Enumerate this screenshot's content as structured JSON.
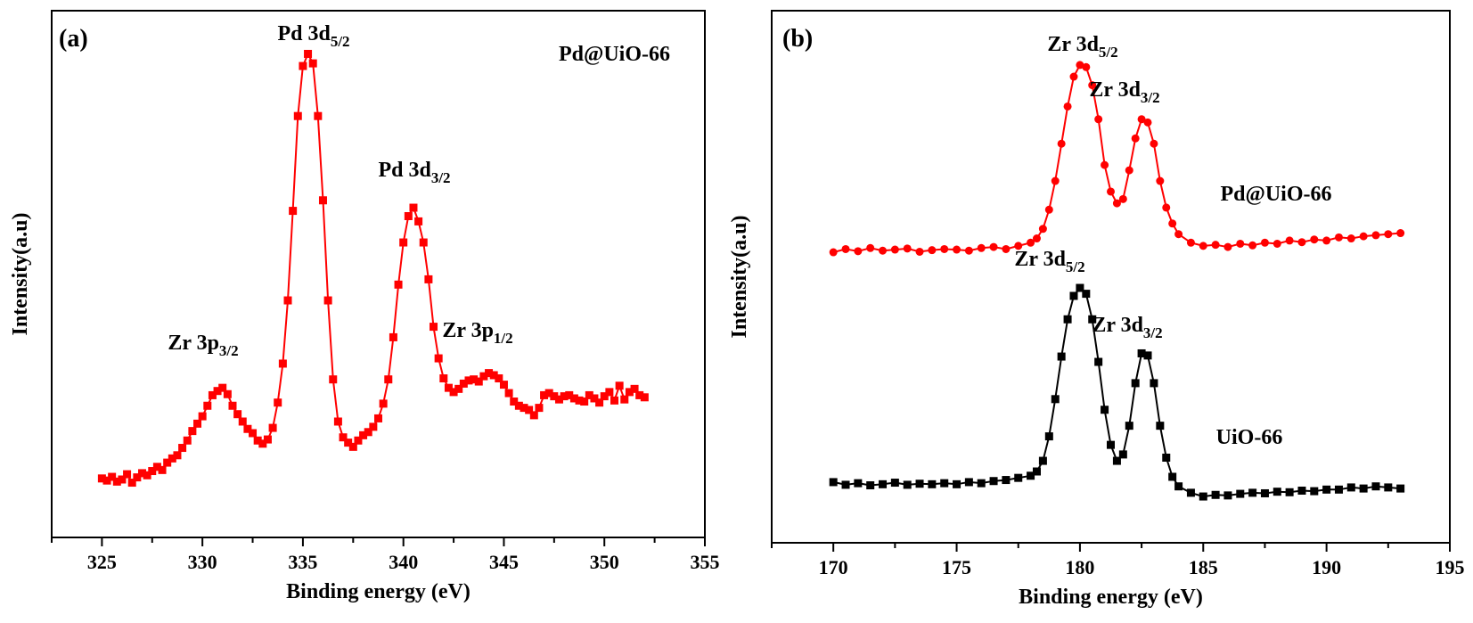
{
  "chart_data": [
    {
      "type": "scatter",
      "panel_label": "(a)",
      "title": "",
      "xlabel": "Binding energy (eV)",
      "ylabel": "Intensity(a.u)",
      "xlim": [
        322.5,
        355
      ],
      "ylim": [
        0,
        100
      ],
      "xticks": [
        325,
        330,
        335,
        340,
        345,
        350,
        355
      ],
      "minor_xticks": [
        322.5,
        327.5,
        332.5,
        337.5,
        342.5,
        347.5,
        352.5
      ],
      "grid": false,
      "sample_label": "Pd@UiO-66",
      "annotations": [
        {
          "text": "Pd 3d",
          "sub": "5/2",
          "x": 335.3,
          "y": 95
        },
        {
          "text": "Pd 3d",
          "sub": "3/2",
          "x": 340.5,
          "y": 67
        },
        {
          "text": "Zr 3p",
          "sub": "3/2",
          "x": 330.8,
          "y": 32
        },
        {
          "text": "Zr 3p",
          "sub": "1/2",
          "x": 344.6,
          "y": 35
        }
      ],
      "series": [
        {
          "name": "Pd@UiO-66",
          "color": "#ff0000",
          "marker": "square",
          "x": [
            325.0,
            325.25,
            325.5,
            325.75,
            326.0,
            326.25,
            326.5,
            326.75,
            327.0,
            327.25,
            327.5,
            327.75,
            328.0,
            328.25,
            328.5,
            328.75,
            329.0,
            329.25,
            329.5,
            329.75,
            330.0,
            330.25,
            330.5,
            330.75,
            331.0,
            331.25,
            331.5,
            331.75,
            332.0,
            332.25,
            332.5,
            332.75,
            333.0,
            333.25,
            333.5,
            333.75,
            334.0,
            334.25,
            334.5,
            334.75,
            335.0,
            335.25,
            335.5,
            335.75,
            336.0,
            336.25,
            336.5,
            336.75,
            337.0,
            337.25,
            337.5,
            337.75,
            338.0,
            338.25,
            338.5,
            338.75,
            339.0,
            339.25,
            339.5,
            339.75,
            340.0,
            340.25,
            340.5,
            340.75,
            341.0,
            341.25,
            341.5,
            341.75,
            342.0,
            342.25,
            342.5,
            342.75,
            343.0,
            343.25,
            343.5,
            343.75,
            344.0,
            344.25,
            344.5,
            344.75,
            345.0,
            345.25,
            345.5,
            345.75,
            346.0,
            346.25,
            346.5,
            346.75,
            347.0,
            347.25,
            347.5,
            347.75,
            348.0,
            348.25,
            348.5,
            348.75,
            349.0,
            349.25,
            349.5,
            349.75,
            350.0,
            350.25,
            350.5,
            350.75,
            351.0,
            351.25,
            351.5,
            351.75,
            352.0
          ],
          "y": [
            11.2,
            10.8,
            11.5,
            10.6,
            11.0,
            12.0,
            10.4,
            11.4,
            12.2,
            11.8,
            12.6,
            13.4,
            12.8,
            14.2,
            15.0,
            15.6,
            17.0,
            18.4,
            20.2,
            21.6,
            23.0,
            25.0,
            27.0,
            27.8,
            28.4,
            27.2,
            25.0,
            23.4,
            22.0,
            20.6,
            19.8,
            18.4,
            17.8,
            18.6,
            20.8,
            25.6,
            33.0,
            45.0,
            62.0,
            80.0,
            89.5,
            91.8,
            90.0,
            80.0,
            64.0,
            45.0,
            30.0,
            22.0,
            19.0,
            18.0,
            17.2,
            18.4,
            19.4,
            20.0,
            21.0,
            22.6,
            25.4,
            30.0,
            38.0,
            48.0,
            56.0,
            61.0,
            62.6,
            60.0,
            56.0,
            49.0,
            40.0,
            34.0,
            30.2,
            28.4,
            27.6,
            28.2,
            29.2,
            29.8,
            30.0,
            29.6,
            30.6,
            31.2,
            30.8,
            30.2,
            29.0,
            27.4,
            25.8,
            25.0,
            24.6,
            24.2,
            23.2,
            24.6,
            27.0,
            27.4,
            26.8,
            26.2,
            26.8,
            27.0,
            26.4,
            26.0,
            25.8,
            27.0,
            26.4,
            25.6,
            26.8,
            27.6,
            26.0,
            28.8,
            26.2,
            27.6,
            28.2,
            27.0,
            26.6
          ]
        }
      ]
    },
    {
      "type": "scatter",
      "panel_label": "(b)",
      "title": "",
      "xlabel": "Binding energy (eV)",
      "ylabel": "Intensity(a.u)",
      "xlim": [
        167.5,
        195
      ],
      "ylim": [
        0,
        100
      ],
      "xticks": [
        170,
        175,
        180,
        185,
        190,
        195
      ],
      "minor_xticks": [
        167.5,
        172.5,
        177.5,
        182.5,
        187.5,
        192.5
      ],
      "grid": false,
      "annotations": [
        {
          "text": "Zr 3d",
          "sub": "5/2",
          "x": 180.0,
          "y": 94
        },
        {
          "text": "Zr 3d",
          "sub": "3/2",
          "x": 183.2,
          "y": 84
        },
        {
          "text": "Pd@UiO-66",
          "sub": "",
          "x": 190.6,
          "y": 63
        },
        {
          "text": "Zr 3d",
          "sub": "5/2",
          "x": 180.0,
          "y": 51
        },
        {
          "text": "Zr 3d",
          "sub": "3/2",
          "x": 183.2,
          "y": 40
        },
        {
          "text": "UiO-66",
          "sub": "",
          "x": 191.4,
          "y": 17
        }
      ],
      "series": [
        {
          "name": "Pd@UiO-66",
          "color": "#ff0000",
          "marker": "circle",
          "x": [
            170.0,
            170.5,
            171.0,
            171.5,
            172.0,
            172.5,
            173.0,
            173.5,
            174.0,
            174.5,
            175.0,
            175.5,
            176.0,
            176.5,
            177.0,
            177.5,
            178.0,
            178.25,
            178.5,
            178.75,
            179.0,
            179.25,
            179.5,
            179.75,
            180.0,
            180.25,
            180.5,
            180.75,
            181.0,
            181.25,
            181.5,
            181.75,
            182.0,
            182.25,
            182.5,
            182.75,
            183.0,
            183.25,
            183.5,
            183.75,
            184.0,
            184.5,
            185.0,
            185.5,
            186.0,
            186.5,
            187.0,
            187.5,
            188.0,
            188.5,
            189.0,
            189.5,
            190.0,
            190.5,
            191.0,
            191.5,
            192.0,
            192.5,
            193.0
          ],
          "y": [
            54.6,
            55.2,
            54.8,
            55.4,
            54.9,
            55.1,
            55.3,
            54.7,
            55.0,
            55.2,
            55.1,
            54.9,
            55.4,
            55.6,
            55.2,
            55.8,
            56.4,
            57.2,
            59.0,
            62.6,
            68.0,
            75.0,
            82.0,
            87.6,
            89.8,
            89.4,
            86.0,
            79.6,
            71.0,
            66.0,
            63.8,
            64.6,
            70.0,
            76.0,
            79.6,
            79.0,
            75.0,
            68.0,
            63.0,
            60.0,
            58.0,
            56.4,
            55.8,
            56.0,
            55.6,
            56.2,
            55.9,
            56.4,
            56.2,
            56.8,
            56.5,
            57.0,
            56.8,
            57.4,
            57.2,
            57.6,
            57.8,
            58.0,
            58.2
          ]
        },
        {
          "name": "UiO-66",
          "color": "#000000",
          "marker": "square",
          "x": [
            170.0,
            170.5,
            171.0,
            171.5,
            172.0,
            172.5,
            173.0,
            173.5,
            174.0,
            174.5,
            175.0,
            175.5,
            176.0,
            176.5,
            177.0,
            177.5,
            178.0,
            178.25,
            178.5,
            178.75,
            179.0,
            179.25,
            179.5,
            179.75,
            180.0,
            180.25,
            180.5,
            180.75,
            181.0,
            181.25,
            181.5,
            181.75,
            182.0,
            182.25,
            182.5,
            182.75,
            183.0,
            183.25,
            183.5,
            183.75,
            184.0,
            184.5,
            185.0,
            185.5,
            186.0,
            186.5,
            187.0,
            187.5,
            188.0,
            188.5,
            189.0,
            189.5,
            190.0,
            190.5,
            191.0,
            191.5,
            192.0,
            192.5,
            193.0
          ],
          "y": [
            11.4,
            10.9,
            11.2,
            10.8,
            11.0,
            11.3,
            10.9,
            11.1,
            11.0,
            11.2,
            11.0,
            11.4,
            11.2,
            11.6,
            11.8,
            12.2,
            12.6,
            13.4,
            15.4,
            20.0,
            27.0,
            35.0,
            42.0,
            46.4,
            47.9,
            46.8,
            42.0,
            34.0,
            25.0,
            18.4,
            15.4,
            16.6,
            22.0,
            30.0,
            35.6,
            35.2,
            30.0,
            22.0,
            16.0,
            12.4,
            10.6,
            9.4,
            8.7,
            9.0,
            8.9,
            9.2,
            9.4,
            9.3,
            9.6,
            9.5,
            9.8,
            9.7,
            10.0,
            10.0,
            10.4,
            10.2,
            10.6,
            10.4,
            10.2
          ]
        }
      ]
    }
  ]
}
